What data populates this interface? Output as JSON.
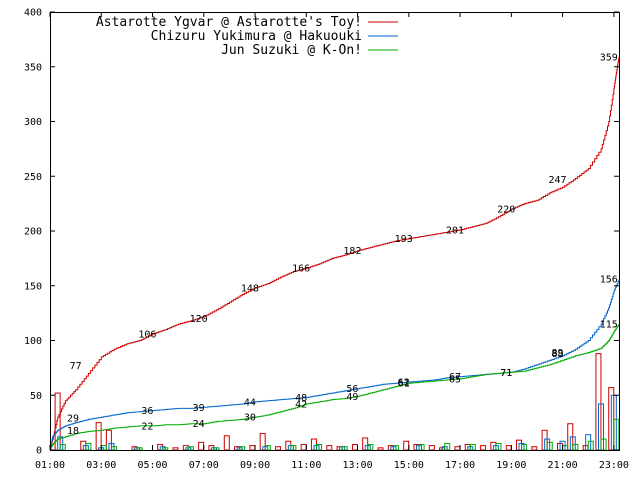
{
  "chart_data": {
    "type": "line",
    "xlim": [
      1,
      23.2
    ],
    "ylim": [
      0,
      400
    ],
    "x_ticks": [
      "01:00",
      "03:00",
      "05:00",
      "07:00",
      "09:00",
      "11:00",
      "13:00",
      "15:00",
      "17:00",
      "19:00",
      "21:00",
      "23:00"
    ],
    "x_tick_values": [
      1,
      3,
      5,
      7,
      9,
      11,
      13,
      15,
      17,
      19,
      21,
      23
    ],
    "y_ticks": [
      0,
      50,
      100,
      150,
      200,
      250,
      300,
      350,
      400
    ],
    "legend_position": "top-left",
    "grid": false,
    "series": [
      {
        "name": "Astarotte Ygvar @ Astarotte's Toy!",
        "color": "#cc0000",
        "cumulative": [
          [
            1.0,
            0
          ],
          [
            1.1,
            10
          ],
          [
            1.3,
            30
          ],
          [
            1.6,
            45
          ],
          [
            2.0,
            55
          ],
          [
            2.5,
            70
          ],
          [
            3.0,
            85
          ],
          [
            3.5,
            92
          ],
          [
            4.0,
            97
          ],
          [
            4.5,
            100
          ],
          [
            5.0,
            106
          ],
          [
            5.5,
            110
          ],
          [
            6.0,
            115
          ],
          [
            6.5,
            118
          ],
          [
            7.0,
            122
          ],
          [
            7.5,
            128
          ],
          [
            8.0,
            135
          ],
          [
            8.5,
            142
          ],
          [
            9.0,
            148
          ],
          [
            9.5,
            152
          ],
          [
            10.0,
            158
          ],
          [
            10.5,
            163
          ],
          [
            11.0,
            166
          ],
          [
            11.5,
            170
          ],
          [
            12.0,
            175
          ],
          [
            12.5,
            178
          ],
          [
            13.0,
            182
          ],
          [
            13.5,
            185
          ],
          [
            14.0,
            188
          ],
          [
            14.5,
            191
          ],
          [
            15.0,
            193
          ],
          [
            15.5,
            195
          ],
          [
            16.0,
            197
          ],
          [
            16.5,
            199
          ],
          [
            17.0,
            201
          ],
          [
            17.5,
            204
          ],
          [
            18.0,
            207
          ],
          [
            18.5,
            213
          ],
          [
            19.0,
            220
          ],
          [
            19.5,
            225
          ],
          [
            20.0,
            228
          ],
          [
            20.5,
            235
          ],
          [
            21.0,
            240
          ],
          [
            21.5,
            248
          ],
          [
            22.0,
            257
          ],
          [
            22.5,
            275
          ],
          [
            22.8,
            300
          ],
          [
            23.0,
            330
          ],
          [
            23.1,
            345
          ],
          [
            23.2,
            359
          ]
        ],
        "labels": [
          {
            "x": 2.0,
            "v": 77
          },
          {
            "x": 4.8,
            "v": 106
          },
          {
            "x": 6.8,
            "v": 120
          },
          {
            "x": 8.8,
            "v": 148
          },
          {
            "x": 10.8,
            "v": 166
          },
          {
            "x": 12.8,
            "v": 182
          },
          {
            "x": 14.8,
            "v": 193
          },
          {
            "x": 16.8,
            "v": 201
          },
          {
            "x": 18.8,
            "v": 220
          },
          {
            "x": 20.8,
            "v": 247
          },
          {
            "x": 22.8,
            "v": 359
          }
        ],
        "bars": [
          [
            1.2,
            52
          ],
          [
            2.2,
            8
          ],
          [
            2.8,
            25
          ],
          [
            3.2,
            18
          ],
          [
            4.2,
            3
          ],
          [
            5.2,
            5
          ],
          [
            5.8,
            2
          ],
          [
            6.2,
            4
          ],
          [
            6.8,
            7
          ],
          [
            7.2,
            4
          ],
          [
            7.8,
            13
          ],
          [
            8.2,
            3
          ],
          [
            8.8,
            4
          ],
          [
            9.2,
            15
          ],
          [
            9.8,
            3
          ],
          [
            10.2,
            8
          ],
          [
            10.8,
            5
          ],
          [
            11.2,
            10
          ],
          [
            11.8,
            4
          ],
          [
            12.2,
            3
          ],
          [
            12.8,
            5
          ],
          [
            13.2,
            11
          ],
          [
            13.8,
            2
          ],
          [
            14.2,
            4
          ],
          [
            14.8,
            8
          ],
          [
            15.2,
            5
          ],
          [
            15.8,
            4
          ],
          [
            16.2,
            2
          ],
          [
            16.8,
            3
          ],
          [
            17.2,
            5
          ],
          [
            17.8,
            4
          ],
          [
            18.2,
            7
          ],
          [
            18.8,
            4
          ],
          [
            19.2,
            9
          ],
          [
            19.8,
            3
          ],
          [
            20.2,
            18
          ],
          [
            20.8,
            6
          ],
          [
            21.2,
            24
          ],
          [
            21.8,
            4
          ],
          [
            22.3,
            88
          ],
          [
            22.8,
            57
          ]
        ]
      },
      {
        "name": "Chizuru Yukimura @ Hakuouki",
        "color": "#0066cc",
        "cumulative": [
          [
            1.0,
            0
          ],
          [
            1.1,
            12
          ],
          [
            1.3,
            18
          ],
          [
            1.6,
            22
          ],
          [
            2.0,
            25
          ],
          [
            2.5,
            28
          ],
          [
            3.0,
            30
          ],
          [
            3.5,
            32
          ],
          [
            4.0,
            34
          ],
          [
            4.5,
            35
          ],
          [
            5.0,
            36
          ],
          [
            5.5,
            37
          ],
          [
            6.0,
            38
          ],
          [
            6.5,
            38
          ],
          [
            7.0,
            39
          ],
          [
            7.5,
            40
          ],
          [
            8.0,
            41
          ],
          [
            8.5,
            42
          ],
          [
            9.0,
            44
          ],
          [
            9.5,
            45
          ],
          [
            10.0,
            46
          ],
          [
            10.5,
            47
          ],
          [
            11.0,
            48
          ],
          [
            11.5,
            50
          ],
          [
            12.0,
            52
          ],
          [
            12.5,
            54
          ],
          [
            13.0,
            56
          ],
          [
            13.5,
            58
          ],
          [
            14.0,
            60
          ],
          [
            14.5,
            61
          ],
          [
            15.0,
            62
          ],
          [
            15.5,
            63
          ],
          [
            16.0,
            64
          ],
          [
            16.5,
            66
          ],
          [
            17.0,
            67
          ],
          [
            17.5,
            68
          ],
          [
            18.0,
            69
          ],
          [
            18.5,
            70
          ],
          [
            19.0,
            71
          ],
          [
            19.5,
            74
          ],
          [
            20.0,
            78
          ],
          [
            20.5,
            82
          ],
          [
            21.0,
            86
          ],
          [
            21.5,
            92
          ],
          [
            22.0,
            100
          ],
          [
            22.5,
            115
          ],
          [
            22.8,
            130
          ],
          [
            23.0,
            145
          ],
          [
            23.2,
            156
          ]
        ],
        "labels": [
          {
            "x": 1.9,
            "v": 29
          },
          {
            "x": 4.8,
            "v": 36
          },
          {
            "x": 6.8,
            "v": 39
          },
          {
            "x": 8.8,
            "v": 44
          },
          {
            "x": 10.8,
            "v": 48
          },
          {
            "x": 12.8,
            "v": 56
          },
          {
            "x": 14.8,
            "v": 62
          },
          {
            "x": 16.8,
            "v": 67
          },
          {
            "x": 18.8,
            "v": 71
          },
          {
            "x": 20.8,
            "v": 88
          },
          {
            "x": 22.8,
            "v": 156
          }
        ],
        "bars": [
          [
            1.3,
            12
          ],
          [
            2.3,
            4
          ],
          [
            2.9,
            2
          ],
          [
            3.3,
            6
          ],
          [
            4.3,
            2
          ],
          [
            5.3,
            3
          ],
          [
            6.3,
            2
          ],
          [
            7.3,
            2
          ],
          [
            8.3,
            2
          ],
          [
            9.3,
            3
          ],
          [
            10.3,
            4
          ],
          [
            11.3,
            4
          ],
          [
            12.3,
            3
          ],
          [
            13.3,
            4
          ],
          [
            14.3,
            3
          ],
          [
            15.3,
            4
          ],
          [
            16.3,
            3
          ],
          [
            17.3,
            3
          ],
          [
            18.3,
            4
          ],
          [
            19.3,
            6
          ],
          [
            20.3,
            10
          ],
          [
            20.9,
            8
          ],
          [
            21.3,
            12
          ],
          [
            21.9,
            14
          ],
          [
            22.4,
            42
          ],
          [
            22.9,
            50
          ]
        ]
      },
      {
        "name": "Jun Suzuki @ K-On!",
        "color": "#00aa00",
        "cumulative": [
          [
            1.0,
            0
          ],
          [
            1.1,
            5
          ],
          [
            1.3,
            10
          ],
          [
            1.6,
            12
          ],
          [
            2.0,
            15
          ],
          [
            2.5,
            17
          ],
          [
            3.0,
            18
          ],
          [
            3.5,
            20
          ],
          [
            4.0,
            21
          ],
          [
            4.5,
            22
          ],
          [
            5.0,
            22
          ],
          [
            5.5,
            23
          ],
          [
            6.0,
            23
          ],
          [
            6.5,
            24
          ],
          [
            7.0,
            24
          ],
          [
            7.5,
            26
          ],
          [
            8.0,
            27
          ],
          [
            8.5,
            28
          ],
          [
            9.0,
            30
          ],
          [
            9.5,
            32
          ],
          [
            10.0,
            35
          ],
          [
            10.5,
            38
          ],
          [
            11.0,
            42
          ],
          [
            11.5,
            44
          ],
          [
            12.0,
            46
          ],
          [
            12.5,
            47
          ],
          [
            13.0,
            49
          ],
          [
            13.5,
            52
          ],
          [
            14.0,
            55
          ],
          [
            14.5,
            58
          ],
          [
            15.0,
            61
          ],
          [
            15.5,
            62
          ],
          [
            16.0,
            63
          ],
          [
            16.5,
            64
          ],
          [
            17.0,
            65
          ],
          [
            17.5,
            67
          ],
          [
            18.0,
            69
          ],
          [
            18.5,
            70
          ],
          [
            19.0,
            71
          ],
          [
            19.5,
            72
          ],
          [
            20.0,
            75
          ],
          [
            20.5,
            78
          ],
          [
            21.0,
            82
          ],
          [
            21.5,
            86
          ],
          [
            22.0,
            89
          ],
          [
            22.5,
            93
          ],
          [
            22.8,
            100
          ],
          [
            23.0,
            108
          ],
          [
            23.2,
            115
          ]
        ],
        "labels": [
          {
            "x": 1.9,
            "v": 18
          },
          {
            "x": 4.8,
            "v": 22
          },
          {
            "x": 6.8,
            "v": 24
          },
          {
            "x": 8.8,
            "v": 30
          },
          {
            "x": 10.8,
            "v": 42
          },
          {
            "x": 12.8,
            "v": 49
          },
          {
            "x": 14.8,
            "v": 61
          },
          {
            "x": 16.8,
            "v": 65
          },
          {
            "x": 18.8,
            "v": 71
          },
          {
            "x": 20.8,
            "v": 89
          },
          {
            "x": 22.8,
            "v": 115
          }
        ],
        "bars": [
          [
            1.4,
            5
          ],
          [
            2.4,
            6
          ],
          [
            3.0,
            4
          ],
          [
            3.4,
            3
          ],
          [
            4.4,
            2
          ],
          [
            5.4,
            2
          ],
          [
            6.4,
            3
          ],
          [
            7.4,
            2
          ],
          [
            8.4,
            3
          ],
          [
            9.4,
            4
          ],
          [
            10.4,
            4
          ],
          [
            11.4,
            5
          ],
          [
            12.4,
            3
          ],
          [
            13.4,
            5
          ],
          [
            14.4,
            4
          ],
          [
            15.4,
            5
          ],
          [
            16.4,
            6
          ],
          [
            17.4,
            5
          ],
          [
            18.4,
            6
          ],
          [
            19.4,
            5
          ],
          [
            20.4,
            7
          ],
          [
            21.0,
            4
          ],
          [
            21.4,
            5
          ],
          [
            22.0,
            8
          ],
          [
            22.5,
            10
          ],
          [
            23.0,
            28
          ]
        ]
      }
    ]
  }
}
